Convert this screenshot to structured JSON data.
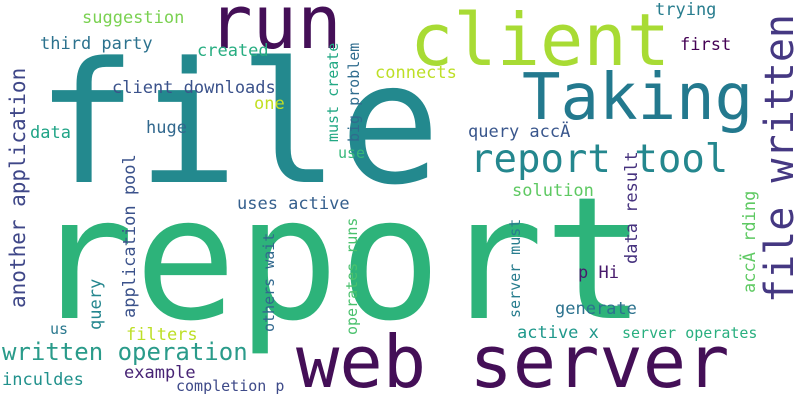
{
  "words": [
    {
      "id": "file",
      "text": "file",
      "color": "#23898e"
    },
    {
      "id": "report",
      "text": "report",
      "color": "#2db37a"
    },
    {
      "id": "web-server",
      "text": "web server",
      "color": "#440f57"
    },
    {
      "id": "run",
      "text": "run",
      "color": "#440f57"
    },
    {
      "id": "client",
      "text": "client",
      "color": "#a8db34"
    },
    {
      "id": "taking",
      "text": "Taking",
      "color": "#23798e"
    },
    {
      "id": "file-written",
      "text": "file written",
      "color": "#453882"
    },
    {
      "id": "report-tool",
      "text": "report tool",
      "color": "#24878e"
    },
    {
      "id": "written-operation",
      "text": "written operation",
      "color": "#2a9b8a"
    },
    {
      "id": "another-application",
      "text": "another application",
      "color": "#3f4788"
    },
    {
      "id": "client-downloads",
      "text": "client downloads",
      "color": "#3b528b"
    },
    {
      "id": "suggestion",
      "text": "suggestion",
      "color": "#7ad151"
    },
    {
      "id": "trying",
      "text": "trying",
      "color": "#287d8e"
    },
    {
      "id": "third-party",
      "text": "third party",
      "color": "#2c728e"
    },
    {
      "id": "created",
      "text": "created",
      "color": "#27ad81"
    },
    {
      "id": "first",
      "text": "first",
      "color": "#440154"
    },
    {
      "id": "connects",
      "text": "connects",
      "color": "#bddf26"
    },
    {
      "id": "one",
      "text": "one",
      "color": "#c2df23"
    },
    {
      "id": "data",
      "text": "data",
      "color": "#20a486"
    },
    {
      "id": "huge",
      "text": "huge",
      "color": "#31688e"
    },
    {
      "id": "query-acca",
      "text": "query accÄ",
      "color": "#39568c"
    },
    {
      "id": "accarding",
      "text": "accÄ rding",
      "color": "#5ec962"
    },
    {
      "id": "solution",
      "text": "solution",
      "color": "#5ec962"
    },
    {
      "id": "uses-active",
      "text": "uses active",
      "color": "#355f8d"
    },
    {
      "id": "p-hi",
      "text": "p Hi",
      "color": "#481a6c"
    },
    {
      "id": "generate",
      "text": "generate",
      "color": "#2c728e"
    },
    {
      "id": "active-x",
      "text": "active x",
      "color": "#1f988b"
    },
    {
      "id": "server-operates",
      "text": "server operates",
      "color": "#29af7f"
    },
    {
      "id": "us",
      "text": "us",
      "color": "#2a788e"
    },
    {
      "id": "filters",
      "text": "filters",
      "color": "#bddf26"
    },
    {
      "id": "example",
      "text": "example",
      "color": "#482475"
    },
    {
      "id": "inculdes",
      "text": "inculdes",
      "color": "#21918c"
    },
    {
      "id": "completion-p",
      "text": "completion p",
      "color": "#3e4a89"
    },
    {
      "id": "must-create",
      "text": "must create",
      "color": "#22a884"
    },
    {
      "id": "use",
      "text": "use",
      "color": "#35b779"
    },
    {
      "id": "big-problem",
      "text": "big problem",
      "color": "#2f6c8e"
    },
    {
      "id": "application-pool",
      "text": "application pool",
      "color": "#3b528b"
    },
    {
      "id": "query",
      "text": "query",
      "color": "#24868e"
    },
    {
      "id": "others-wait",
      "text": "others wait",
      "color": "#31688e"
    },
    {
      "id": "operates-runs",
      "text": "operates runs",
      "color": "#4ac16d"
    },
    {
      "id": "data-result",
      "text": "data result",
      "color": "#46327e"
    },
    {
      "id": "server-must",
      "text": "server must",
      "color": "#287d8e"
    }
  ]
}
